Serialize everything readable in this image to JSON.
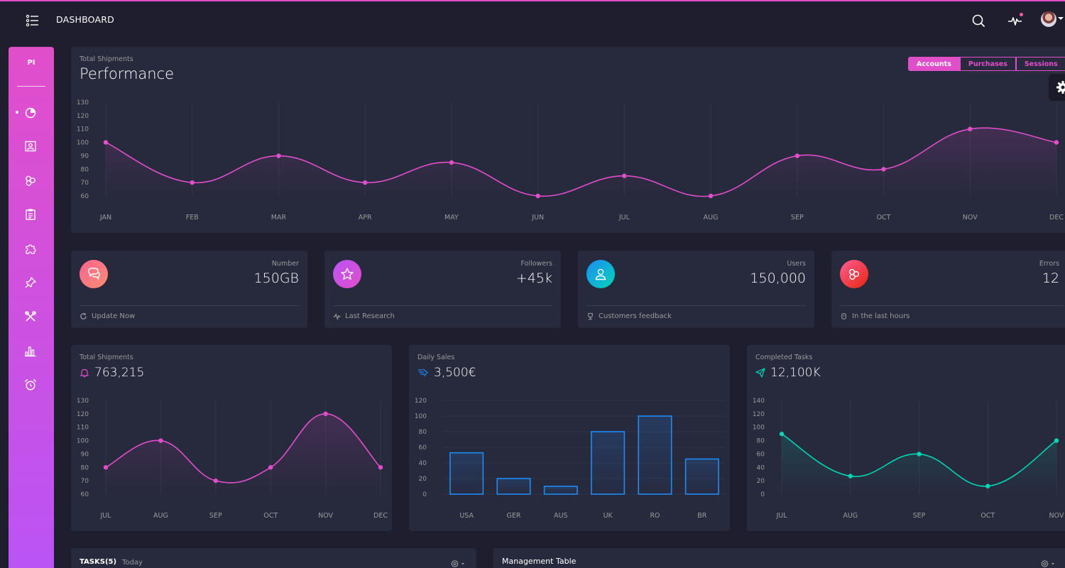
{
  "colors": {
    "background": "#1e1e2f",
    "card": "#27293d",
    "accent": "#e14eca",
    "accent_secondary": "#ba54f5",
    "info": "#1d8cf8",
    "success": "#00f2c3",
    "danger": "#fd5d93",
    "muted": "#9a9a9a"
  },
  "navbar": {
    "brand": "DASHBOARD",
    "icons": [
      "menu-list-icon",
      "search-icon",
      "pulse-icon",
      "user-avatar"
    ]
  },
  "sidebar": {
    "logo": "PI",
    "items": [
      {
        "icon": "chart-pie-icon",
        "active": true
      },
      {
        "icon": "image-icon",
        "active": false
      },
      {
        "icon": "atom-icon",
        "active": false
      },
      {
        "icon": "clipboard-icon",
        "active": false
      },
      {
        "icon": "puzzle-icon",
        "active": false
      },
      {
        "icon": "pin-icon",
        "active": false
      },
      {
        "icon": "tools-icon",
        "active": false
      },
      {
        "icon": "bar-chart-icon",
        "active": false
      },
      {
        "icon": "alarm-icon",
        "active": false
      }
    ]
  },
  "performance": {
    "subtitle": "Total Shipments",
    "title": "Performance",
    "tabs": [
      {
        "label": "Accounts",
        "active": true
      },
      {
        "label": "Purchases",
        "active": false
      },
      {
        "label": "Sessions",
        "active": false
      }
    ]
  },
  "stats": [
    {
      "label": "Number",
      "value": "150GB",
      "footer": "Update Now",
      "icon": "chat-icon",
      "footer_icon": "refresh-icon",
      "color": "#ff6491"
    },
    {
      "label": "Followers",
      "value": "+45k",
      "footer": "Last Research",
      "icon": "star-icon",
      "footer_icon": "pulse-icon",
      "color": "#e14eca"
    },
    {
      "label": "Users",
      "value": "150,000",
      "footer": "Customers feedback",
      "icon": "user-icon",
      "footer_icon": "trophy-icon",
      "color": "#1d8cf8"
    },
    {
      "label": "Errors",
      "value": "12",
      "footer": "In the last hours",
      "icon": "molecule-icon",
      "footer_icon": "watch-icon",
      "color": "#fd5d93"
    }
  ],
  "shipments_card": {
    "subtitle": "Total Shipments",
    "value": "763,215",
    "icon": "bell-icon"
  },
  "daily_sales_card": {
    "subtitle": "Daily Sales",
    "value": "3,500€",
    "icon": "delivery-icon"
  },
  "completed_tasks_card": {
    "subtitle": "Completed Tasks",
    "value": "12,100K",
    "icon": "send-icon"
  },
  "tasks_card": {
    "title": "TASKS(5)",
    "tab": "Today"
  },
  "management_card": {
    "title": "Management Table"
  },
  "chart_data": [
    {
      "id": "performance",
      "type": "line",
      "title": "Performance",
      "categories": [
        "JAN",
        "FEB",
        "MAR",
        "APR",
        "MAY",
        "JUN",
        "JUL",
        "AUG",
        "SEP",
        "OCT",
        "NOV",
        "DEC"
      ],
      "values": [
        100,
        70,
        90,
        70,
        85,
        60,
        75,
        60,
        90,
        80,
        110,
        100
      ],
      "yticks": [
        60,
        70,
        80,
        90,
        100,
        110,
        120,
        130
      ],
      "ylim": [
        60,
        130
      ],
      "color": "#e14eca"
    },
    {
      "id": "shipments",
      "type": "line",
      "title": "Total Shipments",
      "categories": [
        "JUL",
        "AUG",
        "SEP",
        "OCT",
        "NOV",
        "DEC"
      ],
      "values": [
        80,
        100,
        70,
        80,
        120,
        80
      ],
      "yticks": [
        60,
        70,
        80,
        90,
        100,
        110,
        120,
        130
      ],
      "ylim": [
        60,
        130
      ],
      "color": "#e14eca"
    },
    {
      "id": "sales",
      "type": "bar",
      "title": "Daily Sales",
      "categories": [
        "USA",
        "GER",
        "AUS",
        "UK",
        "RO",
        "BR"
      ],
      "values": [
        53,
        20,
        10,
        80,
        100,
        45
      ],
      "yticks": [
        0,
        20,
        40,
        60,
        80,
        100,
        120
      ],
      "ylim": [
        0,
        120
      ],
      "color": "#1d8cf8"
    },
    {
      "id": "tasks",
      "type": "line",
      "title": "Completed Tasks",
      "categories": [
        "JUL",
        "AUG",
        "SEP",
        "OCT",
        "NOV"
      ],
      "values": [
        90,
        27,
        60,
        12,
        80
      ],
      "yticks": [
        0,
        20,
        40,
        60,
        80,
        100,
        120,
        140
      ],
      "ylim": [
        0,
        140
      ],
      "color": "#00d6b4"
    }
  ]
}
